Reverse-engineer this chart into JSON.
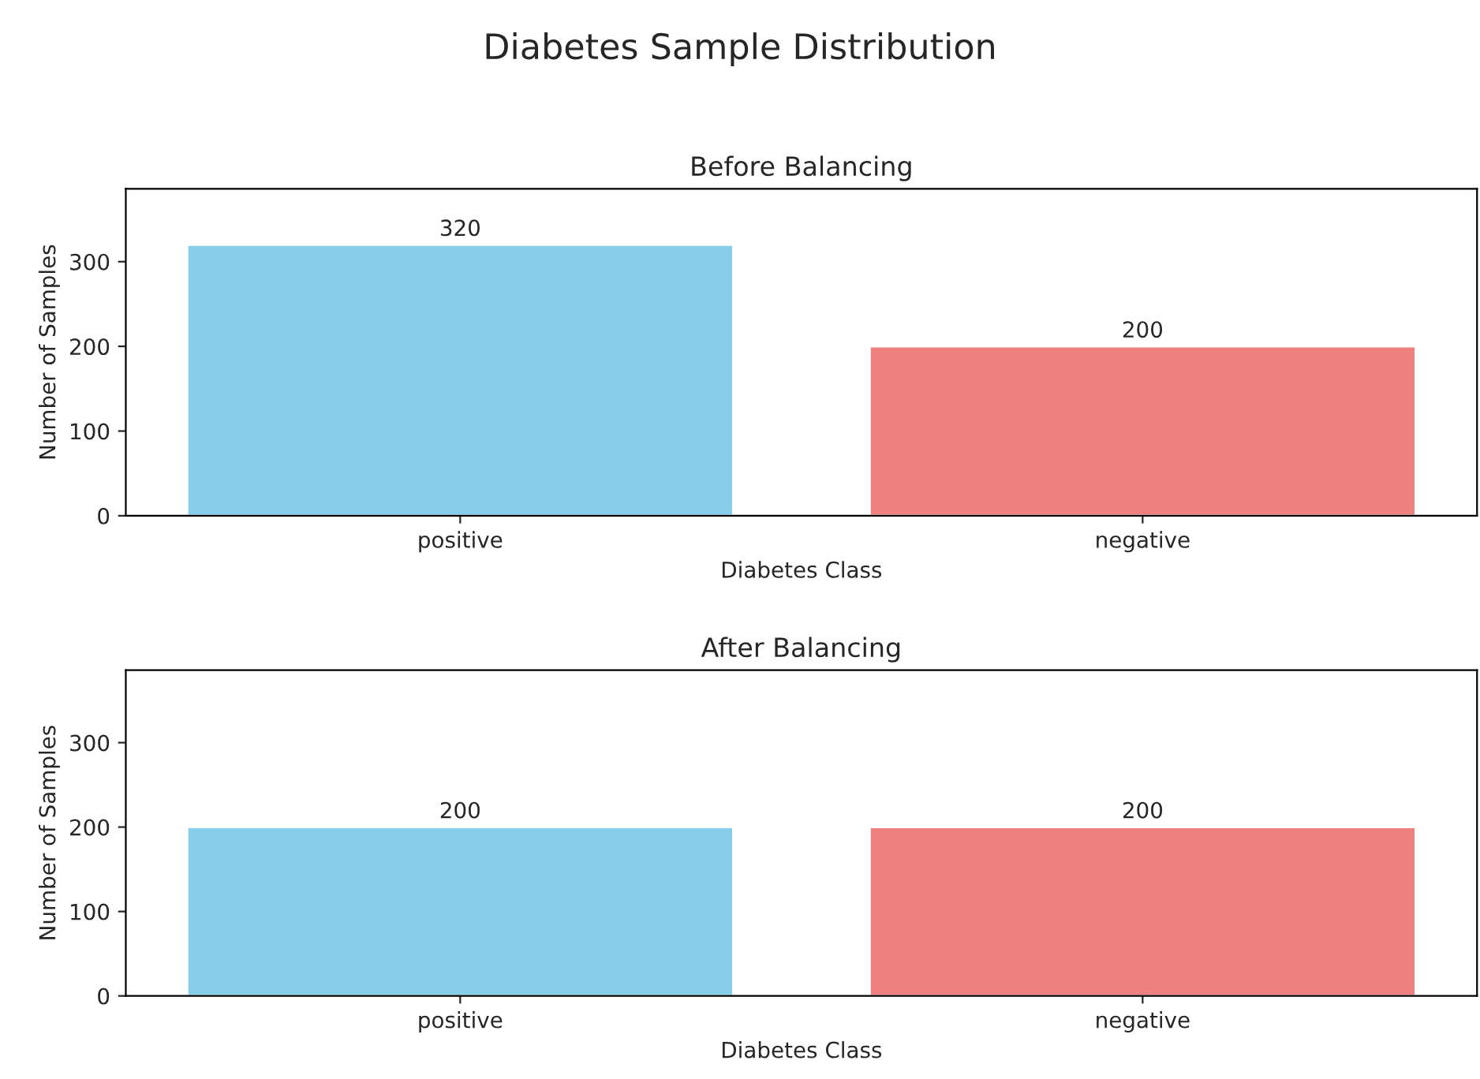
{
  "chart_data": [
    {
      "type": "bar",
      "title": "Before Balancing",
      "xlabel": "Diabetes Class",
      "ylabel": "Number of Samples",
      "categories": [
        "positive",
        "negative"
      ],
      "values": [
        320,
        200
      ],
      "colors": [
        "#87ceeb",
        "#f08080"
      ],
      "ylim": [
        0,
        386
      ],
      "yticks": [
        0,
        100,
        200,
        300
      ],
      "data_labels": true,
      "grid": false,
      "annotations": [
        "Diabetes Sample Distribution"
      ]
    },
    {
      "type": "bar",
      "title": "After Balancing",
      "xlabel": "Diabetes Class",
      "ylabel": "Number of Samples",
      "categories": [
        "positive",
        "negative"
      ],
      "values": [
        200,
        200
      ],
      "colors": [
        "#87ceeb",
        "#f08080"
      ],
      "ylim": [
        0,
        386
      ],
      "yticks": [
        0,
        100,
        200,
        300
      ],
      "data_labels": true,
      "grid": false
    }
  ]
}
